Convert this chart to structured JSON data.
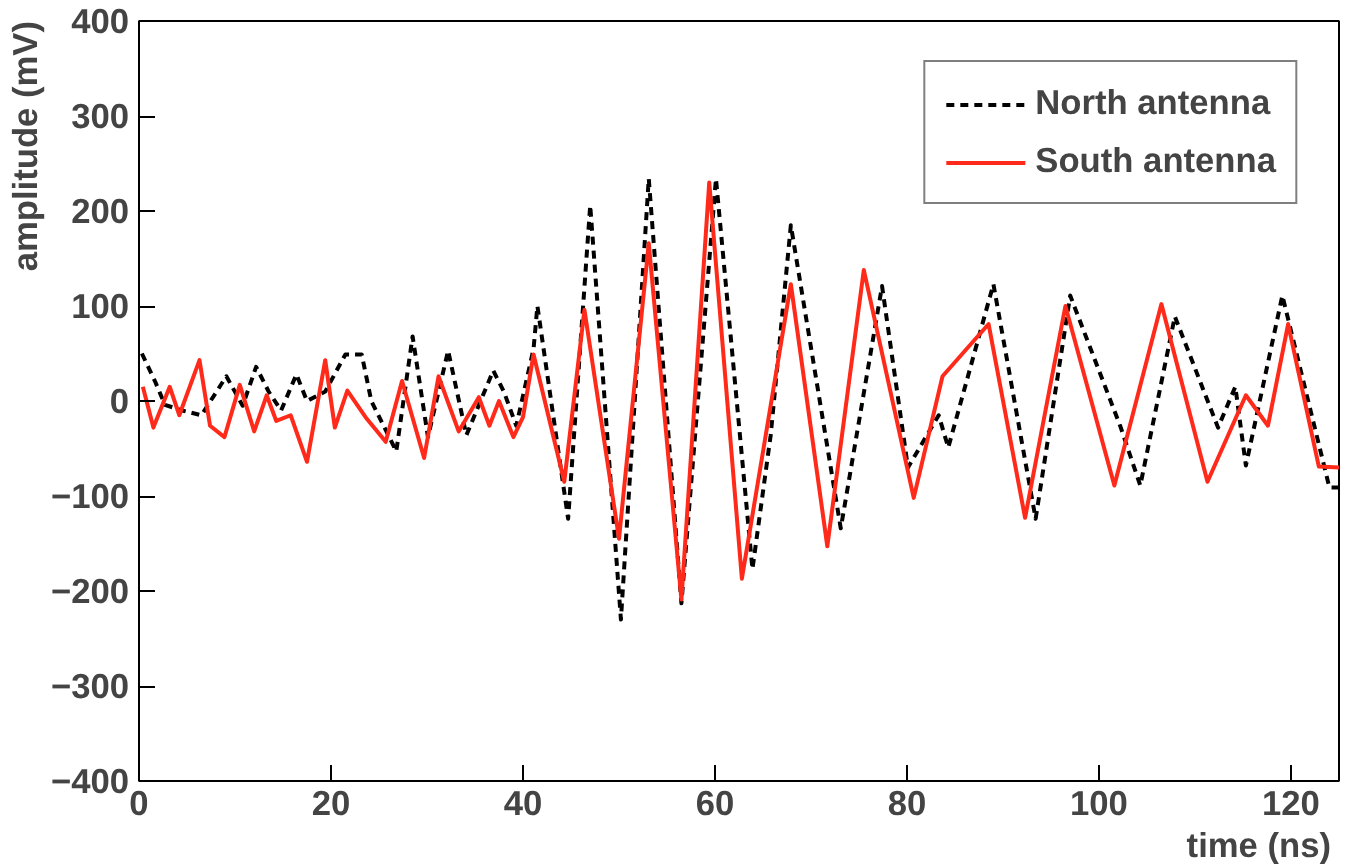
{
  "chart_data": {
    "type": "line",
    "xlabel": "time (ns)",
    "ylabel": "amplitude (mV)",
    "xlim": [
      0,
      125
    ],
    "ylim": [
      -400,
      400
    ],
    "xticks": [
      0,
      20,
      40,
      60,
      80,
      100,
      120
    ],
    "yticks": [
      -400,
      -300,
      -200,
      -100,
      0,
      100,
      200,
      300,
      400
    ],
    "grid": false,
    "legend": "top right",
    "marker": "none",
    "series": [
      {
        "name": "North antenna",
        "color": "#000000",
        "line_style": "dashed",
        "x": [
          0.3,
          1.7,
          2.7,
          4.5,
          6.5,
          9.1,
          10.8,
          12.2,
          13.5,
          14.8,
          16.4,
          17.5,
          19.4,
          21.5,
          23.2,
          24.2,
          26.8,
          28.5,
          30.1,
          32.2,
          34.1,
          36.9,
          38,
          39.3,
          41.1,
          41.5,
          44.7,
          47,
          50.2,
          53.1,
          56.5,
          60.1,
          63.9,
          65.8,
          67.9,
          73.1,
          77.4,
          80.1,
          83.3,
          84.3,
          89,
          93.4,
          97,
          102.2,
          104.3,
          107.9,
          112.4,
          114.2,
          115.3,
          119.1,
          124,
          125
        ],
        "values": [
          50,
          20,
          -4,
          -10,
          -15,
          26,
          -5,
          36,
          10,
          -10,
          28,
          0,
          10,
          49,
          49,
          0,
          -53,
          68,
          -38,
          53,
          -36,
          32,
          10,
          -26,
          55,
          100,
          -124,
          206,
          -230,
          234,
          -213,
          234,
          -177,
          -36,
          185,
          -134,
          121,
          -70,
          -15,
          -49,
          123,
          -124,
          111,
          -26,
          -89,
          89,
          -28,
          15,
          -68,
          111,
          -91,
          -91
        ]
      },
      {
        "name": "South antenna",
        "color": "#ff2a1a",
        "line_style": "solid",
        "x": [
          0.4,
          1.5,
          3.2,
          4.2,
          6.3,
          7.4,
          8.9,
          10.5,
          12,
          13.3,
          14.3,
          15.8,
          17.5,
          19.4,
          20.4,
          21.7,
          23.6,
          25.7,
          27.4,
          29.7,
          31.2,
          33.3,
          35.4,
          36.5,
          37.5,
          39,
          40,
          41.1,
          44.3,
          46.4,
          50,
          53.1,
          56.5,
          59.4,
          62.8,
          67.9,
          71.7,
          75.5,
          80.7,
          83.7,
          88.5,
          92.3,
          96.5,
          101.6,
          106.5,
          111.3,
          115.3,
          117.6,
          119.7,
          122.9,
          125
        ],
        "values": [
          15,
          -28,
          15,
          -15,
          43,
          -26,
          -38,
          17,
          -32,
          6,
          -21,
          -15,
          -64,
          43,
          -28,
          11,
          -17,
          -43,
          21,
          -60,
          26,
          -32,
          4,
          -26,
          0,
          -38,
          -17,
          49,
          -85,
          96,
          -145,
          166,
          -209,
          230,
          -187,
          123,
          -153,
          138,
          -102,
          26,
          81,
          -123,
          100,
          -89,
          102,
          -85,
          6,
          -26,
          81,
          -69,
          -70
        ]
      }
    ]
  }
}
